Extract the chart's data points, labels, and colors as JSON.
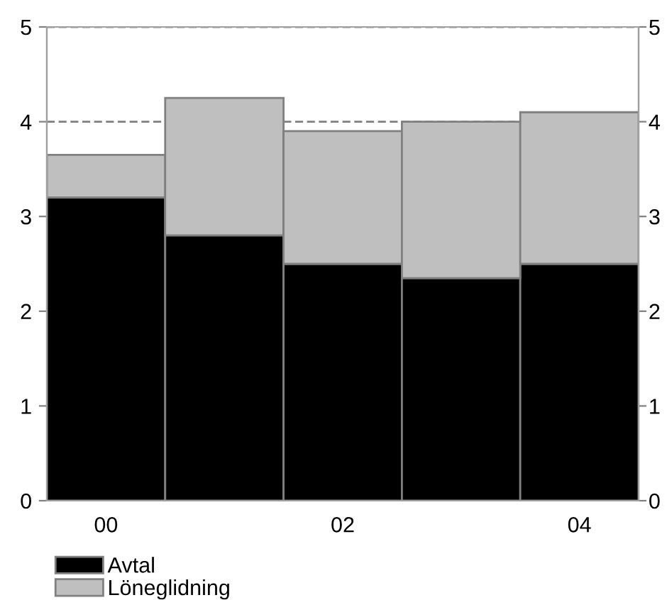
{
  "chart_data": {
    "type": "bar",
    "stacked": true,
    "categories": [
      "00",
      null,
      "02",
      null,
      "04"
    ],
    "series": [
      {
        "name": "Avtal",
        "color": "#000000",
        "values": [
          3.2,
          2.8,
          2.5,
          2.35,
          2.5
        ]
      },
      {
        "name": "Löneglidning",
        "color": "#bfbfbf",
        "values": [
          0.45,
          1.45,
          1.4,
          1.65,
          1.6
        ]
      }
    ],
    "ylim": [
      0,
      5
    ],
    "yticks": [
      0,
      1,
      2,
      3,
      4,
      5
    ],
    "y2lim": [
      0,
      5
    ],
    "y2ticks": [
      0,
      1,
      2,
      3,
      4,
      5
    ],
    "grid": "y",
    "line_style": "dashed",
    "legend": "bottom"
  }
}
